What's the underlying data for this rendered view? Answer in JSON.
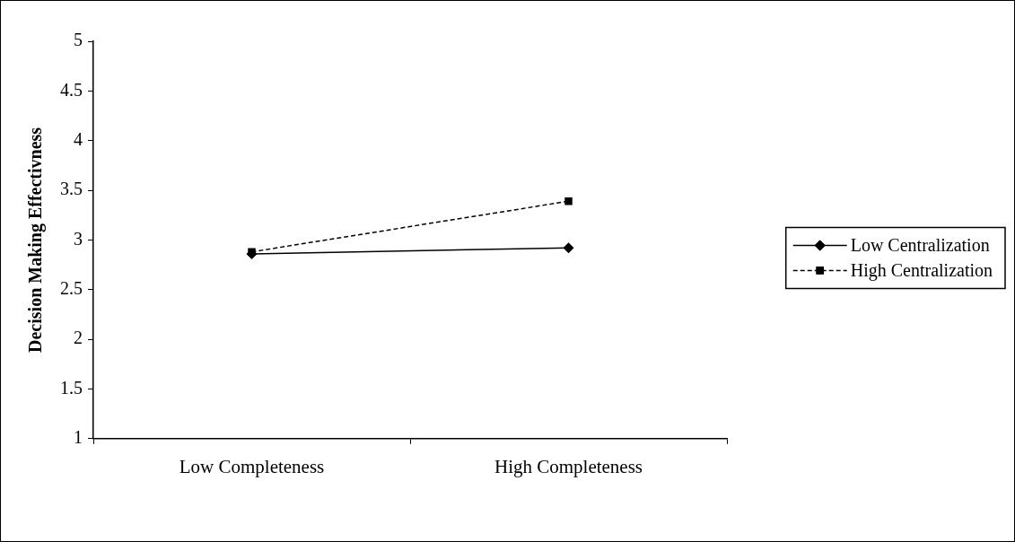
{
  "chart_data": {
    "type": "line",
    "ylabel": "Decision Making Effectivness",
    "categories": [
      "Low Completeness",
      "High Completeness"
    ],
    "series": [
      {
        "name": "Low Centralization",
        "color": "#000000",
        "values": [
          2.86,
          2.92
        ],
        "marker": "diamond",
        "line_style": "solid"
      },
      {
        "name": "High Centralization",
        "color": "#000000",
        "values": [
          2.88,
          3.39
        ],
        "marker": "square",
        "line_style": "dashed"
      }
    ],
    "ylim": [
      1,
      5
    ],
    "yticks": [
      1,
      1.5,
      2,
      2.5,
      3,
      3.5,
      4,
      4.5,
      5
    ],
    "grid": false,
    "legend": "right"
  }
}
